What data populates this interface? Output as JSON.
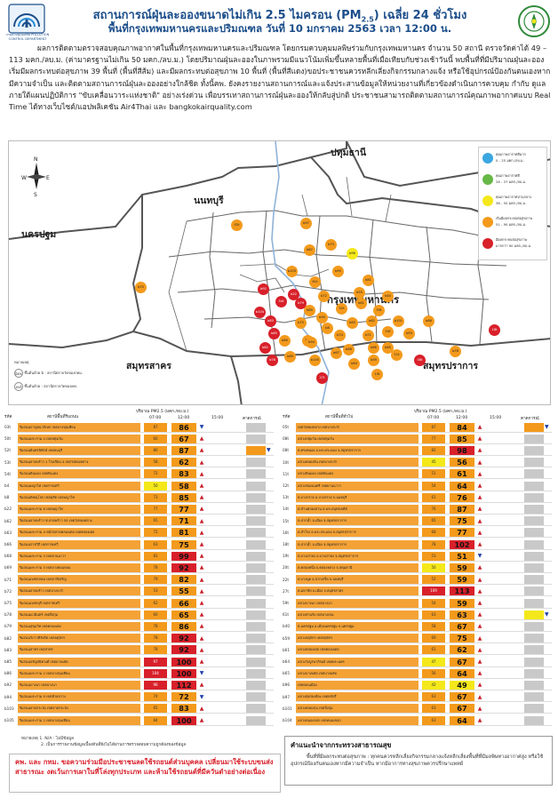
{
  "header": {
    "title_line1_pre": "สถานการณ์ฝุ่นละอองขนาดไม่เกิน 2.5 ไมครอน (PM",
    "title_line1_sub": "2.5",
    "title_line1_post": ") เฉลี่ย 24 ชั่วโมง",
    "title_line2": "พื้นที่กรุงเทพมหานครและปริมณฑล วันที่ 10 มกราคม 2563 เวลา 12:00 น.",
    "logo_left_caption": "กรมควบคุมมลพิษ POLLUTION CONTROL DEPARTMENT",
    "logo_left_icon": "pcd-logo-icon",
    "logo_right_icon": "ministry-seal-icon",
    "accent_color": "#1c4e8a"
  },
  "paragraph": "ผลการติดตามตรวจสอบคุณภาพอากาศในพื้นที่กรุงเทพมหานครและปริมณฑล โดยกรมควบคุมมลพิษร่วมกับกรุงเทพมหานคร จำนวน 50 สถานี ตรวจวัดค่าได้ 49 – 113 มคก./ลบ.ม. (ค่ามาตรฐานไม่เกิน 50 มคก./ลบ.ม.) โดยปริมาณฝุ่นละอองในภาพรวมมีแนวโน้มเพิ่มขึ้นหลายพื้นที่เมื่อเทียบกับช่วงเช้าวันนี้ พบพื้นที่ที่มีปริมาณฝุ่นละอองเริ่มมีผลกระทบต่อสุขภาพ 39 พื้นที่ (พื้นที่สีส้ม) และมีผลกระทบต่อสุขภาพ 10 พื้นที่ (พื้นที่สีแดง)ขอประชาชนควรหลีกเลี่ยงกิจกรรมกลางแจ้ง หรือใช้อุปกรณ์ป้องกันตนเองหากมีความจำเป็น และติดตามสถานการณ์ฝุ่นละอองอย่างใกล้ชิด ทั้งนี้คพ. ยังคงรายงานสถานการณ์และแจ้งประสานข้อมูลให้หน่วยงานที่เกี่ยวข้องดำเนินการควบคุม กำกับ ดูแล ภายใต้แผนปฏิบัติการ \"ขับเคลื่อนวาระแห่งชาติ\" อย่างเร่งด่วน เพื่อบรรเทาสถานการณ์ฝุ่นละอองให้กลับสู่ปกติ ประชาชนสามารถติดตามสถานการณ์คุณภาพอากาศแบบ Real Time ได้ทางเว็บไซต์/แอปพลิเคชัน Air4Thai และ bangkokairquality.com",
  "map": {
    "compass": {
      "n": "N",
      "s": "S",
      "e": "E",
      "w": "W"
    },
    "regions": {
      "pathum": "ปทุมธานี",
      "nonthaburi": "นนทบุรี",
      "nakhon_pathom": "นครปฐม",
      "bangkok": "กรุงเทพมหานคร",
      "samut_sakhon": "สมุทรสาคร",
      "samut_prakan": "สมุทรปราการ"
    },
    "legend": [
      {
        "t1": "คุณภาพอากาศดีมาก",
        "t2": "0 - 25 มคก./ลบ.ม.",
        "color": "#3aa7e0"
      },
      {
        "t1": "คุณภาพอากาศดี",
        "t2": "26 - 37 มคก./ลบ.ม.",
        "color": "#67b847"
      },
      {
        "t1": "คุณภาพอากาศปานกลาง",
        "t2": "38 - 50 มคก./ลบ.ม.",
        "color": "#f4e81a"
      },
      {
        "t1": "เริ่มมีผลกระทบต่อสุขภาพ",
        "t2": "51 - 90 มคก./ลบ.ม.",
        "color": "#f39a1c"
      },
      {
        "t1": "มีผลกระทบต่อสุขภาพ",
        "t2": "มากกว่า 90 มคก./ลบ.ม.",
        "color": "#d8202a"
      }
    ],
    "note_title": "หมายเหตุ",
    "note_1": "ขึ้นต้นด้วย b : สถานีตรวจวัดของกทม.",
    "note_2": "ขึ้นต้นด้วย : สถานีตรวจวัดของคพ.",
    "pins": [
      {
        "label": "b70",
        "color": "o"
      },
      {
        "label": "02t",
        "color": "o"
      },
      {
        "label": "b97",
        "color": "o"
      },
      {
        "label": "b73",
        "color": "o"
      },
      {
        "label": "b87",
        "color": "o"
      },
      {
        "label": "b96",
        "color": "y"
      },
      {
        "label": "b103",
        "color": "o"
      },
      {
        "label": "b95",
        "color": "o"
      },
      {
        "label": "b81",
        "color": "o"
      },
      {
        "label": "61t",
        "color": "o"
      },
      {
        "label": "b92",
        "color": "r"
      },
      {
        "label": "b22",
        "color": "r"
      },
      {
        "label": "b79",
        "color": "r"
      },
      {
        "label": "b72",
        "color": "o"
      },
      {
        "label": "b40",
        "color": "o"
      },
      {
        "label": "b89",
        "color": "o"
      },
      {
        "label": "b90",
        "color": "o"
      },
      {
        "label": "52t",
        "color": "o"
      },
      {
        "label": "b63",
        "color": "o"
      },
      {
        "label": "b104",
        "color": "r"
      },
      {
        "label": "b83",
        "color": "r"
      },
      {
        "label": "b85",
        "color": "r"
      },
      {
        "label": "b75",
        "color": "o"
      },
      {
        "label": "b8",
        "color": "o"
      },
      {
        "label": "b55",
        "color": "o"
      },
      {
        "label": "59t",
        "color": "o"
      },
      {
        "label": "b62",
        "color": "o"
      },
      {
        "label": "b74",
        "color": "o"
      },
      {
        "label": "b61",
        "color": "o"
      },
      {
        "label": "54t",
        "color": "r"
      },
      {
        "label": "b71",
        "color": "o"
      },
      {
        "label": "b80",
        "color": "o"
      },
      {
        "label": "b82",
        "color": "r"
      },
      {
        "label": "b76",
        "color": "r"
      },
      {
        "label": "b69",
        "color": "o"
      },
      {
        "label": "50t",
        "color": "o"
      },
      {
        "label": "53t",
        "color": "o"
      },
      {
        "label": "b66",
        "color": "o"
      },
      {
        "label": "b101",
        "color": "o"
      },
      {
        "label": "b93",
        "color": "o"
      },
      {
        "label": "b86",
        "color": "o"
      },
      {
        "label": "08t",
        "color": "r"
      },
      {
        "label": "19t",
        "color": "o"
      },
      {
        "label": "b67",
        "color": "o"
      },
      {
        "label": "b64",
        "color": "o"
      },
      {
        "label": "27t",
        "color": "r"
      },
      {
        "label": "b105",
        "color": "o"
      },
      {
        "label": "11t",
        "color": "o"
      },
      {
        "label": "b78",
        "color": "o"
      },
      {
        "label": "b94",
        "color": "o"
      },
      {
        "label": "b59",
        "color": "o"
      },
      {
        "label": "18t",
        "color": "r"
      },
      {
        "label": "b68",
        "color": "o"
      },
      {
        "label": "b65",
        "color": "o"
      }
    ]
  },
  "table_header": {
    "left_title": "สถานีพื้นที่ริมถนน",
    "right_title": "สถานีพื้นที่ทั่วไป",
    "unit_label": "ปริมาณ PM2.5 (มคก./ลบ.ม.)",
    "code_col": "รหัส",
    "t0700": "07:00",
    "t1200": "12:00",
    "t1500": "15:00",
    "forecast": "คาดการณ์"
  },
  "left_rows": [
    {
      "code": "03t",
      "name": "ริมถนนกาญจนาภิเษก เขตบางขุนเทียน",
      "v7": "87",
      "v12": "86",
      "arr": "dn",
      "fc": ""
    },
    {
      "code": "50t",
      "name": "ริมถนนพระราม 4 เขตปทุมวัน",
      "v7": "60",
      "v12": "67",
      "arr": "up",
      "fc": ""
    },
    {
      "code": "52t",
      "name": "ริมถนนอินทรพิทักษ์ เขตธนบุรี",
      "v7": "80",
      "v12": "87",
      "arr": "up",
      "fc": "o"
    },
    {
      "code": "53t",
      "name": "ริมถนนลาดพร้าว 1 โรงเรียน 4 เขตวังทองหลาง",
      "v7": "58",
      "v12": "62",
      "arr": "up",
      "fc": ""
    },
    {
      "code": "54t",
      "name": "ริมถนนดินแดง เขตดินแดง",
      "v7": "72",
      "v12": "83",
      "arr": "up",
      "fc": ""
    },
    {
      "code": "b4",
      "name": "ริมถนนพญาไท เขตราชเทวี",
      "v7": "50",
      "v12": "58",
      "arr": "up",
      "fc": ""
    },
    {
      "code": "b8",
      "name": "ริมถนนพิษณุโลก เขตดุสิต เขตพญาไท",
      "v7": "73",
      "v12": "85",
      "arr": "up",
      "fc": ""
    },
    {
      "code": "b22",
      "name": "ริมถนนพระราม 6 เขตพญาไท",
      "v7": "77",
      "v12": "77",
      "arr": "up",
      "fc": ""
    },
    {
      "code": "b62",
      "name": "ริมถนนลาดพร้าว ซ.ลาดพร้าว 55 เขตวังทองหลาง",
      "v7": "65",
      "v12": "71",
      "arr": "up",
      "fc": ""
    },
    {
      "code": "b63",
      "name": "ริมถนนพระราม 4 หน้าตลาดคลองเตย เขตคลองเตย",
      "v7": "72",
      "v12": "81",
      "arr": "up",
      "fc": ""
    },
    {
      "code": "b66",
      "name": "ริมถนนราชวิถี เขตราชเทวี",
      "v7": "63",
      "v12": "75",
      "arr": "up",
      "fc": ""
    },
    {
      "code": "b68",
      "name": "ริมถนนพระราม 3 เขตยานนาวา",
      "v7": "81",
      "v12": "99",
      "arr": "up",
      "fc": ""
    },
    {
      "code": "b69",
      "name": "ริมถนนพระราม 3 เขตบางคอแหลม",
      "v7": "78",
      "v12": "92",
      "arr": "up",
      "fc": ""
    },
    {
      "code": "b71",
      "name": "ริมถนนเพชรเกษม เขตภาษีเจริญ",
      "v7": "79",
      "v12": "82",
      "arr": "up",
      "fc": ""
    },
    {
      "code": "b72",
      "name": "ริมถนนลาดพร้าว เขตบางกะปิ",
      "v7": "53",
      "v12": "55",
      "arr": "up",
      "fc": ""
    },
    {
      "code": "b75",
      "name": "ริมถนนเพชรบุรี เขตราชเทวี",
      "v7": "62",
      "v12": "66",
      "arr": "up",
      "fc": ""
    },
    {
      "code": "b78",
      "name": "ริมถนนนวมินทร์ เขตบึงกุ่ม",
      "v7": "60",
      "v12": "65",
      "arr": "up",
      "fc": ""
    },
    {
      "code": "b79",
      "name": "ริมถนนสุขุมวิท เขตคลองเตย",
      "v7": "78",
      "v12": "86",
      "arr": "up",
      "fc": ""
    },
    {
      "code": "b82",
      "name": "ริมถนนวิภาวดีรังสิต เขตจตุจักร",
      "v7": "78",
      "v12": "92",
      "arr": "up",
      "fc": ""
    },
    {
      "code": "b83",
      "name": "ริมถนนสาทร เขตสาทร",
      "v7": "78",
      "v12": "92",
      "arr": "up",
      "fc": ""
    },
    {
      "code": "b85",
      "name": "ริมถนนจรัญสนิทวงศ์ เขตบางพลัด",
      "v7": "97",
      "v12": "100",
      "arr": "up",
      "fc": ""
    },
    {
      "code": "b86",
      "name": "ริมถนนพระราม 2 เขตบางขุนเทียน",
      "v7": "104",
      "v12": "100",
      "arr": "dn",
      "fc": ""
    },
    {
      "code": "b92",
      "name": "ริมถนนบางนา เขตบางนา",
      "v7": "96",
      "v12": "112",
      "arr": "up",
      "fc": ""
    },
    {
      "code": "b94",
      "name": "ริมถนนพระราม 9 เขตห้วยขวาง",
      "v7": "74",
      "v12": "72",
      "arr": "dn",
      "fc": ""
    },
    {
      "code": "b103",
      "name": "ริมถนนลาดกระบัง เขตลาดกระบัง",
      "v7": "65",
      "v12": "83",
      "arr": "up",
      "fc": ""
    },
    {
      "code": "b105",
      "name": "ริมถนนพระราม 2 เขตบางขุนเทียน",
      "v7": "84",
      "v12": "100",
      "arr": "up",
      "fc": ""
    }
  ],
  "right_rows": [
    {
      "code": "05t",
      "name": "เขตวังทองหลาง เขตบางกะปิ",
      "v7": "87",
      "v12": "84",
      "arr": "up",
      "fc": "o"
    },
    {
      "code": "08t",
      "name": "แขวงปทุมวัน เขตปทุมวัน",
      "v7": "77",
      "v12": "85",
      "arr": "up",
      "fc": ""
    },
    {
      "code": "08t",
      "name": "ต.ทรงคนอง อ.พระประแดง จ.สมุทรปราการ",
      "v7": "82",
      "v12": "98",
      "arr": "up",
      "fc": ""
    },
    {
      "code": "10t",
      "name": "แขวงคลองจั่น เขตบางกะปิ",
      "v7": "45",
      "v12": "56",
      "arr": "up",
      "fc": ""
    },
    {
      "code": "11t",
      "name": "แขวงดินแดง เขตดินแดง",
      "v7": "51",
      "v12": "61",
      "arr": "up",
      "fc": ""
    },
    {
      "code": "12t",
      "name": "แขวงช่องนนทรี เขตยานนาวา",
      "v7": "54",
      "v12": "64",
      "arr": "up",
      "fc": ""
    },
    {
      "code": "13t",
      "name": "ต.บางกรวย อ.บางกรวย จ.นนทบุรี",
      "v7": "61",
      "v12": "76",
      "arr": "up",
      "fc": ""
    },
    {
      "code": "14t",
      "name": "ต.บ้านคลองสวน อ.พระสมุทรเจดีย์",
      "v7": "76",
      "v12": "87",
      "arr": "up",
      "fc": ""
    },
    {
      "code": "15t",
      "name": "ต.ปากน้ำ อ.เมือง จ.สมุทรปราการ",
      "v7": "65",
      "v12": "75",
      "arr": "up",
      "fc": ""
    },
    {
      "code": "16t",
      "name": "ต.สำโรง อ.พระประแดง จ.สมุทรปราการ",
      "v7": "68",
      "v12": "77",
      "arr": "up",
      "fc": ""
    },
    {
      "code": "18t",
      "name": "ต.ปากน้ำ อ.เมือง จ.สมุทรปราการ",
      "v7": "78",
      "v12": "102",
      "arr": "up",
      "fc": ""
    },
    {
      "code": "19t",
      "name": "ต.บางเสาธง อ.บางเสาธง จ.สมุทรปราการ",
      "v7": "53",
      "v12": "51",
      "arr": "dn",
      "fc": ""
    },
    {
      "code": "20t",
      "name": "ต.คลองหนึ่ง อ.คลองหลวง จ.ปทุมธานี",
      "v7": "50",
      "v12": "59",
      "arr": "up",
      "fc": ""
    },
    {
      "code": "22t",
      "name": "ต.บางพูด อ.ปากเกร็ด จ.นนทบุรี",
      "v7": "52",
      "v12": "59",
      "arr": "up",
      "fc": ""
    },
    {
      "code": "27t",
      "name": "ต.มหาชัย อ.เมือง จ.สมุทรสาคร",
      "v7": "109",
      "v12": "113",
      "arr": "up",
      "fc": ""
    },
    {
      "code": "59t",
      "name": "แขวงบางนา เขตบางนา",
      "v7": "54",
      "v12": "59",
      "arr": "up",
      "fc": ""
    },
    {
      "code": "61t",
      "name": "แขวงท่าแร้ง เขตบางเขน",
      "v7": "63",
      "v12": "63",
      "arr": "up",
      "fc": "y"
    },
    {
      "code": "b40",
      "name": "ต.นครปฐม อ.เมืองนครปฐม จ.นครปฐม",
      "v7": "58",
      "v12": "67",
      "arr": "up",
      "fc": ""
    },
    {
      "code": "b59",
      "name": "แขวงจตุจักร เขตจตุจักร",
      "v7": "69",
      "v12": "75",
      "arr": "up",
      "fc": ""
    },
    {
      "code": "b61",
      "name": "แขวงคลองเตย เขตคลองเตย",
      "v7": "61",
      "v12": "62",
      "arr": "up",
      "fc": ""
    },
    {
      "code": "b64",
      "name": "แขวงวังบูรพาภิรมย์ เขตพระนคร",
      "v7": "47",
      "v12": "67",
      "arr": "up",
      "fc": ""
    },
    {
      "code": "b65",
      "name": "แขวงบางพลัด เขตบางพลัด",
      "v7": "56",
      "v12": "64",
      "arr": "up",
      "fc": ""
    },
    {
      "code": "b96",
      "name": "เขตดอนเมือง",
      "v7": "42",
      "v12": "49",
      "arr": "up",
      "fc": ""
    },
    {
      "code": "b97",
      "name": "แขวงทุ่งสองห้อง เขตหลักสี่",
      "v7": "63",
      "v12": "67",
      "arr": "up",
      "fc": ""
    },
    {
      "code": "b101",
      "name": "แขวงคลองกุ่ม เขตบึงกุ่ม",
      "v7": "63",
      "v12": "67",
      "arr": "up",
      "fc": ""
    },
    {
      "code": "b104",
      "name": "แขวงหนองจอก เขตหนองจอก",
      "v7": "63",
      "v12": "64",
      "arr": "up",
      "fc": ""
    }
  ],
  "footnote_1": "หมายเหตุ 1. N/A : ไม่มีข้อมูล",
  "footnote_2": "2. เป็นการรายงานข้อมูลเบื้องต้นที่ยังไม่ได้ผ่านการตรวจสอบความถูกต้องของข้อมูล",
  "redbox_text": "คพ. และ กทม. ขอความร่วมมือประชาชนลดใช้รถยนต์ส่วนบุคคล เปลี่ยนมาใช้ระบบขนส่งสาธารณะ งดเว้นการเผาในที่โล่งทุกประเภท และห้ามใช้รถยนต์ที่มีควันดำอย่างต่อเนื่อง",
  "advice": {
    "title": "คำแนะนำจากกระทรวงสาธารณสุข",
    "text": "พื้นที่ที่มีผลกระทบต่อสุขภาพ : ทุกคนควรหลีกเลี่ยงกิจกรรมกลางแจ้งหลีกเลี่ยงพื้นที่ที่มีมลพิษทางอากาศสูง หรือใช้อุปกรณ์ป้องกันตนเองหากมีความจำเป็น หากมีอาการทางสุขภาพควรปรึกษาแพทย์"
  }
}
